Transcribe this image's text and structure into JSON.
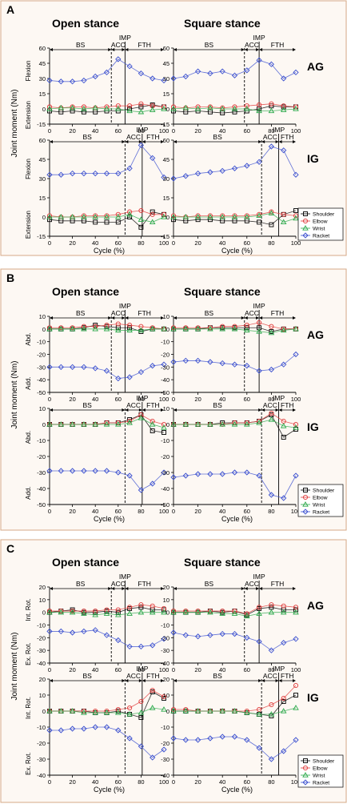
{
  "palette": {
    "panel_bg": "#fdf8f3",
    "panel_border": "#d6a987",
    "shoulder": "#000000",
    "elbow": "#e03a3a",
    "wrist": "#2aa84a",
    "racket": "#3a4fcf"
  },
  "shared": {
    "col_titles": [
      "Open stance",
      "Square stance"
    ],
    "row_labels": [
      "AG",
      "IG"
    ],
    "xlabel": "Cycle (%)",
    "xticks": [
      "0",
      "20",
      "40",
      "60",
      "80",
      "100"
    ],
    "phases": {
      "bs": "BS",
      "acc": "ACC",
      "imp": "IMP",
      "fth": "FTH"
    },
    "legend": [
      "Shoulder",
      "Elbow",
      "Wrist",
      "Racket"
    ]
  },
  "chart_data": [
    {
      "panel_label": "A",
      "type": "line",
      "ylabel": "Joint moment (Nm)",
      "side_labels": [
        [
          "Flexion",
          "Extension"
        ],
        [
          "Flexion",
          "Extension"
        ]
      ],
      "ylim": [
        -15,
        60
      ],
      "yticks": [
        "-15",
        "0",
        "15",
        "30",
        "45",
        "60"
      ],
      "phase_markers": [
        [
          54,
          66
        ],
        [
          58,
          70
        ],
        [
          66,
          81
        ],
        [
          72,
          86
        ]
      ],
      "x": [
        0,
        10,
        20,
        30,
        40,
        50,
        60,
        70,
        80,
        90,
        100
      ],
      "subplots": [
        {
          "series": [
            {
              "name": "Shoulder",
              "values": [
                -2,
                -3,
                -2,
                -3,
                -3,
                -2,
                -2,
                0,
                2,
                4,
                2
              ]
            },
            {
              "name": "Elbow",
              "values": [
                2,
                1,
                2,
                2,
                1,
                2,
                3,
                3,
                5,
                3,
                2
              ]
            },
            {
              "name": "Wrist",
              "values": [
                0,
                1,
                1,
                0,
                1,
                0,
                0,
                -2,
                -3,
                -1,
                0
              ]
            },
            {
              "name": "Racket",
              "values": [
                28,
                27,
                27,
                28,
                32,
                36,
                49,
                42,
                35,
                30,
                28
              ]
            }
          ]
        },
        {
          "series": [
            {
              "name": "Shoulder",
              "values": [
                -2,
                -3,
                -2,
                -3,
                -4,
                -3,
                -2,
                0,
                3,
                2,
                2
              ]
            },
            {
              "name": "Elbow",
              "values": [
                2,
                1,
                2,
                2,
                1,
                2,
                3,
                4,
                5,
                3,
                2
              ]
            },
            {
              "name": "Wrist",
              "values": [
                0,
                1,
                0,
                1,
                0,
                0,
                0,
                -2,
                -2,
                -1,
                0
              ]
            },
            {
              "name": "Racket",
              "values": [
                30,
                32,
                37,
                35,
                37,
                33,
                38,
                48,
                44,
                30,
                36
              ]
            }
          ]
        },
        {
          "series": [
            {
              "name": "Shoulder",
              "values": [
                -2,
                -3,
                -3,
                -3,
                -4,
                -4,
                -4,
                0,
                -8,
                4,
                2
              ]
            },
            {
              "name": "Elbow",
              "values": [
                1,
                0,
                0,
                1,
                1,
                1,
                2,
                4,
                5,
                2,
                2
              ]
            },
            {
              "name": "Wrist",
              "values": [
                0,
                0,
                0,
                0,
                0,
                0,
                0,
                2,
                -2,
                -4,
                0
              ]
            },
            {
              "name": "Racket",
              "values": [
                33,
                33,
                34,
                34,
                34,
                34,
                34,
                38,
                56,
                46,
                31
              ]
            }
          ]
        },
        {
          "series": [
            {
              "name": "Shoulder",
              "values": [
                -2,
                -3,
                -2,
                -2,
                -3,
                -3,
                -3,
                -4,
                -6,
                2,
                5
              ]
            },
            {
              "name": "Elbow",
              "values": [
                1,
                0,
                1,
                1,
                1,
                1,
                1,
                2,
                4,
                2,
                1
              ]
            },
            {
              "name": "Wrist",
              "values": [
                0,
                0,
                0,
                0,
                0,
                0,
                0,
                1,
                3,
                -4,
                -1
              ]
            },
            {
              "name": "Racket",
              "values": [
                30,
                32,
                34,
                35,
                36,
                38,
                40,
                43,
                55,
                52,
                33
              ]
            }
          ]
        }
      ]
    },
    {
      "panel_label": "B",
      "type": "line",
      "ylabel": "Joint moment (Nm)",
      "side_labels": [
        [
          "Abd.",
          "Add."
        ],
        [
          "Abd.",
          "Add."
        ]
      ],
      "ylim": [
        -50,
        10
      ],
      "yticks": [
        "-50",
        "-40",
        "-30",
        "-20",
        "-10",
        "0",
        "10"
      ],
      "phase_markers": [
        [
          54,
          66
        ],
        [
          58,
          70
        ],
        [
          66,
          81
        ],
        [
          72,
          86
        ]
      ],
      "x": [
        0,
        10,
        20,
        30,
        40,
        50,
        60,
        70,
        80,
        90,
        100
      ],
      "subplots": [
        {
          "series": [
            {
              "name": "Shoulder",
              "values": [
                0,
                0,
                0,
                1,
                3,
                2,
                1,
                1,
                -2,
                0,
                0
              ]
            },
            {
              "name": "Elbow",
              "values": [
                1,
                1,
                1,
                2,
                2,
                3,
                4,
                3,
                2,
                1,
                0
              ]
            },
            {
              "name": "Wrist",
              "values": [
                0,
                0,
                0,
                0,
                0,
                0,
                -1,
                -1,
                -1,
                0,
                0
              ]
            },
            {
              "name": "Racket",
              "values": [
                -30,
                -30,
                -30,
                -30,
                -31,
                -33,
                -39,
                -38,
                -34,
                -29,
                -28
              ]
            }
          ]
        },
        {
          "series": [
            {
              "name": "Shoulder",
              "values": [
                0,
                0,
                0,
                1,
                1,
                1,
                1,
                1,
                -2,
                0,
                0
              ]
            },
            {
              "name": "Elbow",
              "values": [
                1,
                1,
                1,
                1,
                2,
                2,
                3,
                5,
                2,
                0,
                0
              ]
            },
            {
              "name": "Wrist",
              "values": [
                0,
                0,
                0,
                0,
                0,
                0,
                -1,
                -2,
                -3,
                -1,
                0
              ]
            },
            {
              "name": "Racket",
              "values": [
                -26,
                -25,
                -25,
                -26,
                -27,
                -28,
                -29,
                -33,
                -32,
                -28,
                -20
              ]
            }
          ]
        },
        {
          "series": [
            {
              "name": "Shoulder",
              "values": [
                0,
                0,
                0,
                0,
                0,
                1,
                1,
                3,
                6,
                -4,
                -5
              ]
            },
            {
              "name": "Elbow",
              "values": [
                0,
                0,
                0,
                0,
                0,
                1,
                1,
                2,
                6,
                2,
                0
              ]
            },
            {
              "name": "Wrist",
              "values": [
                0,
                0,
                0,
                0,
                0,
                0,
                0,
                1,
                4,
                0,
                -2
              ]
            },
            {
              "name": "Racket",
              "values": [
                -29,
                -29,
                -29,
                -29,
                -29,
                -29,
                -30,
                -32,
                -41,
                -37,
                -30
              ]
            }
          ]
        },
        {
          "series": [
            {
              "name": "Shoulder",
              "values": [
                0,
                0,
                0,
                0,
                1,
                1,
                1,
                2,
                6,
                -8,
                -3
              ]
            },
            {
              "name": "Elbow",
              "values": [
                0,
                0,
                0,
                0,
                0,
                1,
                1,
                2,
                7,
                2,
                0
              ]
            },
            {
              "name": "Wrist",
              "values": [
                0,
                0,
                0,
                0,
                0,
                0,
                0,
                1,
                3,
                -1,
                -2
              ]
            },
            {
              "name": "Racket",
              "values": [
                -33,
                -32,
                -31,
                -31,
                -31,
                -30,
                -30,
                -32,
                -44,
                -46,
                -32
              ]
            }
          ]
        }
      ]
    },
    {
      "panel_label": "C",
      "type": "line",
      "ylabel": "Joint moment (Nm)",
      "side_labels": [
        [
          "Int. Rot.",
          "Ex. Rot."
        ],
        [
          "Int. Rot.",
          "Ex. Rot."
        ]
      ],
      "ylim": [
        -40,
        20
      ],
      "yticks": [
        "-40",
        "-30",
        "-20",
        "-10",
        "0",
        "10",
        "20"
      ],
      "phase_markers": [
        [
          54,
          66
        ],
        [
          58,
          70
        ],
        [
          66,
          81
        ],
        [
          72,
          86
        ]
      ],
      "x": [
        0,
        10,
        20,
        30,
        40,
        50,
        60,
        70,
        80,
        90,
        100
      ],
      "subplots": [
        {
          "series": [
            {
              "name": "Shoulder",
              "values": [
                0,
                1,
                2,
                0,
                0,
                1,
                0,
                3,
                4,
                2,
                2
              ]
            },
            {
              "name": "Elbow",
              "values": [
                1,
                1,
                1,
                1,
                1,
                2,
                2,
                4,
                6,
                5,
                3
              ]
            },
            {
              "name": "Wrist",
              "values": [
                0,
                0,
                0,
                -1,
                -2,
                -1,
                -2,
                -1,
                0,
                0,
                0
              ]
            },
            {
              "name": "Racket",
              "values": [
                -15,
                -15,
                -16,
                -15,
                -14,
                -18,
                -22,
                -27,
                -27,
                -26,
                -21
              ]
            }
          ]
        },
        {
          "series": [
            {
              "name": "Shoulder",
              "values": [
                0,
                0,
                0,
                1,
                0,
                1,
                -2,
                3,
                4,
                2,
                2
              ]
            },
            {
              "name": "Elbow",
              "values": [
                1,
                1,
                1,
                1,
                1,
                1,
                -1,
                4,
                6,
                5,
                4
              ]
            },
            {
              "name": "Wrist",
              "values": [
                0,
                0,
                0,
                0,
                -1,
                -1,
                -3,
                -1,
                0,
                0,
                0
              ]
            },
            {
              "name": "Racket",
              "values": [
                -16,
                -18,
                -19,
                -18,
                -17,
                -17,
                -20,
                -23,
                -30,
                -24,
                -21
              ]
            }
          ]
        },
        {
          "series": [
            {
              "name": "Shoulder",
              "values": [
                0,
                0,
                0,
                0,
                -1,
                -1,
                0,
                -2,
                -4,
                12,
                8
              ]
            },
            {
              "name": "Elbow",
              "values": [
                0,
                0,
                0,
                0,
                0,
                0,
                1,
                2,
                6,
                13,
                9
              ]
            },
            {
              "name": "Wrist",
              "values": [
                0,
                0,
                0,
                -1,
                -1,
                -1,
                -1,
                -2,
                -1,
                2,
                1
              ]
            },
            {
              "name": "Racket",
              "values": [
                -12,
                -12,
                -11,
                -11,
                -10,
                -10,
                -12,
                -17,
                -22,
                -29,
                -24
              ]
            }
          ]
        },
        {
          "series": [
            {
              "name": "Shoulder",
              "values": [
                0,
                0,
                0,
                0,
                0,
                0,
                -1,
                -2,
                -3,
                6,
                10
              ]
            },
            {
              "name": "Elbow",
              "values": [
                1,
                1,
                0,
                0,
                0,
                0,
                0,
                1,
                4,
                8,
                16
              ]
            },
            {
              "name": "Wrist",
              "values": [
                0,
                0,
                0,
                0,
                0,
                0,
                -1,
                -2,
                -2,
                0,
                2
              ]
            },
            {
              "name": "Racket",
              "values": [
                -17,
                -18,
                -18,
                -17,
                -16,
                -16,
                -18,
                -23,
                -30,
                -25,
                -18
              ]
            }
          ]
        }
      ]
    }
  ]
}
